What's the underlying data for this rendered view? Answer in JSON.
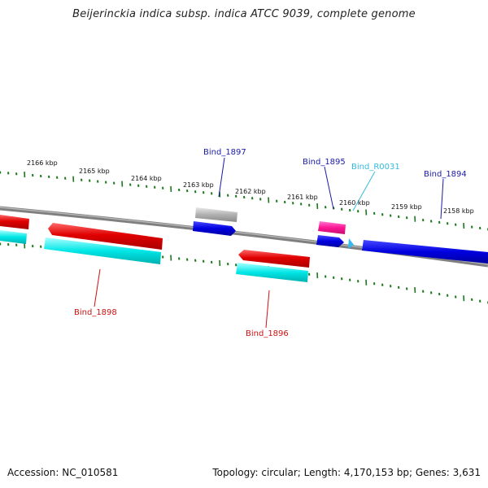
{
  "title": "Beijerinckia indica subsp. indica ATCC 9039, complete genome",
  "footer": {
    "accession": "Accession: NC_010581",
    "summary": "Topology: circular; Length: 4,170,153 bp; Genes: 3,631"
  },
  "scale_labels": [
    "2166 kbp",
    "2165 kbp",
    "2164 kbp",
    "2163 kbp",
    "2162 kbp",
    "2161 kbp",
    "2160 kbp",
    "2159 kbp",
    "2158 kbp"
  ],
  "gene_labels": {
    "bind_1897": "Bind_1897",
    "bind_1895": "Bind_1895",
    "bind_r0031": "Bind_R0031",
    "bind_1894": "Bind_1894",
    "bind_1898": "Bind_1898",
    "bind_1896": "Bind_1896"
  },
  "colors": {
    "backbone": "#7f7f7f",
    "ticks": "#1a7a1a",
    "forward_cds": "#0000e0",
    "reverse_cds": "#e00000",
    "reverse_hit": "#00e0e0",
    "rrna": "#ff1493",
    "trna": "#33bbee",
    "unmatched": "#aaaaaa",
    "label_forward": "#1a1aa6",
    "label_reverse": "#cc1111",
    "label_rna": "#33bbdd"
  }
}
